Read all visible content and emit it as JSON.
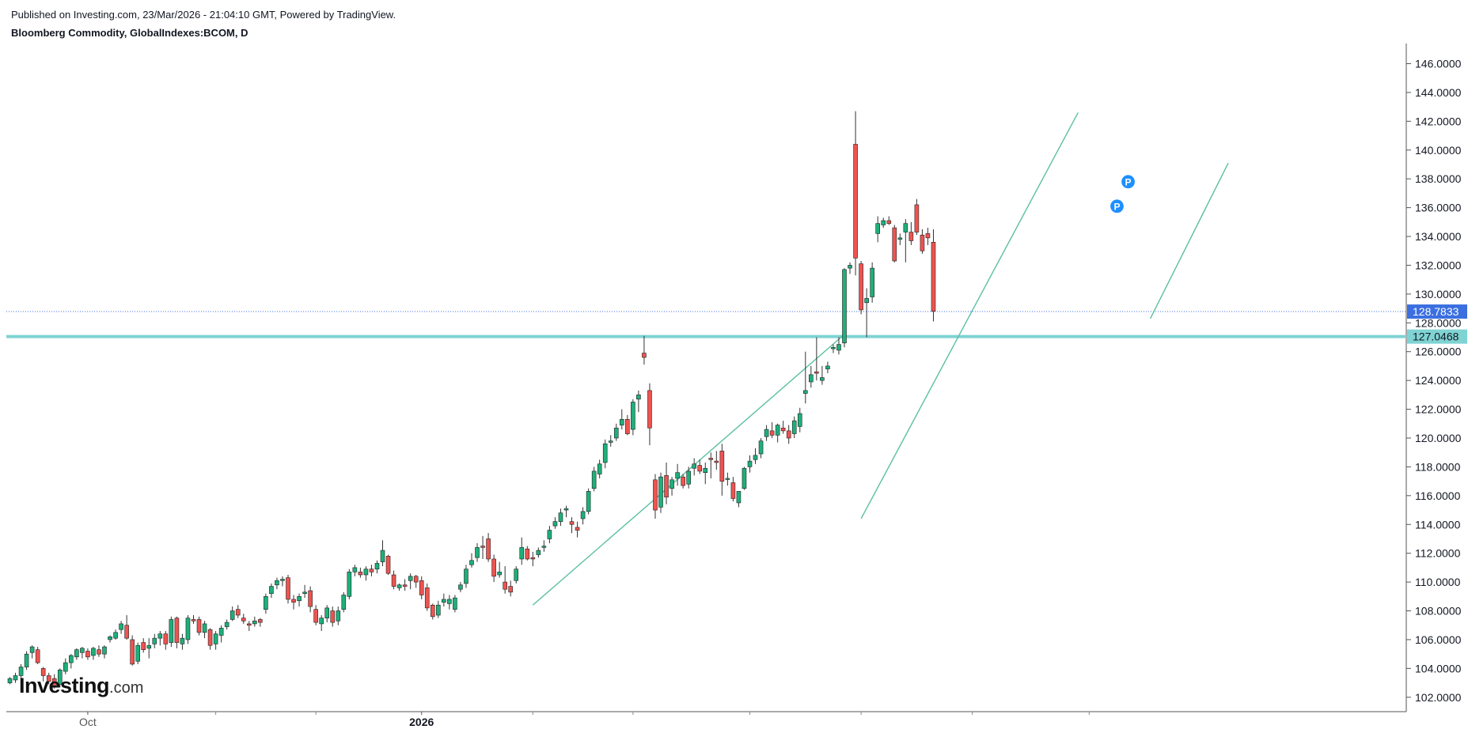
{
  "header": {
    "published": "Published on Investing.com, 23/Mar/2026 - 21:04:10 GMT, Powered by TradingView.",
    "title": "Bloomberg Commodity, GlobalIndexes:BCOM, D"
  },
  "logo": {
    "brand": "Investing",
    "suffix": ".com"
  },
  "colors": {
    "up": "#1db07a",
    "down": "#ef5350",
    "wick": "#333333",
    "trendline": "#5bbfa4",
    "support": "#7fd3d3",
    "last_price": "#3b6fe0",
    "marker": "#1e90ff"
  },
  "chart_data": {
    "type": "candlestick",
    "ylim": [
      101,
      147.4
    ],
    "y_ticks": [
      "146.0000",
      "144.0000",
      "142.0000",
      "140.0000",
      "138.0000",
      "136.0000",
      "134.0000",
      "132.0000",
      "130.0000",
      "128.0000",
      "126.0000",
      "124.0000",
      "122.0000",
      "120.0000",
      "118.0000",
      "116.0000",
      "114.0000",
      "112.0000",
      "110.0000",
      "108.0000",
      "106.0000",
      "104.0000",
      "102.0000"
    ],
    "x_labels": [
      {
        "label": "Oct",
        "index": 14,
        "bold": false
      },
      {
        "label": "2026",
        "index": 74,
        "bold": true
      }
    ],
    "x_minor_ticks": [
      37,
      55,
      94,
      112,
      133,
      153,
      173,
      194
    ],
    "bars_visible": 214,
    "candles": [
      [
        103.0,
        103.4,
        102.9,
        103.3
      ],
      [
        103.2,
        103.7,
        103.0,
        103.5
      ],
      [
        103.5,
        104.3,
        103.3,
        104.1
      ],
      [
        104.1,
        105.2,
        103.9,
        105.0
      ],
      [
        105.1,
        105.6,
        104.7,
        105.5
      ],
      [
        105.3,
        105.5,
        104.3,
        104.4
      ],
      [
        104.0,
        104.1,
        103.1,
        103.5
      ],
      [
        103.5,
        103.7,
        102.9,
        103.1
      ],
      [
        103.3,
        103.6,
        102.6,
        102.8
      ],
      [
        102.9,
        104.0,
        102.7,
        103.9
      ],
      [
        103.8,
        104.7,
        103.6,
        104.4
      ],
      [
        104.4,
        105.0,
        104.0,
        104.9
      ],
      [
        104.8,
        105.4,
        104.6,
        105.3
      ],
      [
        105.1,
        105.5,
        104.7,
        105.4
      ],
      [
        105.2,
        105.4,
        104.6,
        104.8
      ],
      [
        104.9,
        105.5,
        104.6,
        105.4
      ],
      [
        105.3,
        105.6,
        104.8,
        105.0
      ],
      [
        105.0,
        105.6,
        104.7,
        105.5
      ],
      [
        106.0,
        106.3,
        105.8,
        106.2
      ],
      [
        106.1,
        106.7,
        106.0,
        106.5
      ],
      [
        106.7,
        107.3,
        106.4,
        107.1
      ],
      [
        107.0,
        107.7,
        106.0,
        106.1
      ],
      [
        106.0,
        106.3,
        104.2,
        104.3
      ],
      [
        104.5,
        105.8,
        104.3,
        105.6
      ],
      [
        105.8,
        106.1,
        105.1,
        105.3
      ],
      [
        105.4,
        106.1,
        104.7,
        105.6
      ],
      [
        105.7,
        106.4,
        105.4,
        106.1
      ],
      [
        106.1,
        106.6,
        105.6,
        106.4
      ],
      [
        106.4,
        106.6,
        105.3,
        105.7
      ],
      [
        105.8,
        107.6,
        105.5,
        107.4
      ],
      [
        107.5,
        107.6,
        105.4,
        105.8
      ],
      [
        105.7,
        106.4,
        105.3,
        106.1
      ],
      [
        106.0,
        107.7,
        105.7,
        107.5
      ],
      [
        107.4,
        107.7,
        107.1,
        107.3
      ],
      [
        107.4,
        107.6,
        106.3,
        106.5
      ],
      [
        106.5,
        107.3,
        106.1,
        107.1
      ],
      [
        106.7,
        106.8,
        105.3,
        105.6
      ],
      [
        105.7,
        106.6,
        105.3,
        106.4
      ],
      [
        106.3,
        107.0,
        105.8,
        106.8
      ],
      [
        106.9,
        107.4,
        106.7,
        107.2
      ],
      [
        107.4,
        108.3,
        107.3,
        108.0
      ],
      [
        108.1,
        108.4,
        107.5,
        107.7
      ],
      [
        107.5,
        107.8,
        107.1,
        107.3
      ],
      [
        107.1,
        107.3,
        106.6,
        107.0
      ],
      [
        107.1,
        107.6,
        106.9,
        107.3
      ],
      [
        107.4,
        107.5,
        106.9,
        107.2
      ],
      [
        108.1,
        109.2,
        107.8,
        109.0
      ],
      [
        109.2,
        109.9,
        108.9,
        109.7
      ],
      [
        109.8,
        110.3,
        109.5,
        110.1
      ],
      [
        110.1,
        110.4,
        109.7,
        110.2
      ],
      [
        110.3,
        110.5,
        108.5,
        108.8
      ],
      [
        108.8,
        109.1,
        108.1,
        108.6
      ],
      [
        108.7,
        109.2,
        108.3,
        109.0
      ],
      [
        109.2,
        109.8,
        108.9,
        109.3
      ],
      [
        109.4,
        109.7,
        107.9,
        108.3
      ],
      [
        108.1,
        108.4,
        107.0,
        107.2
      ],
      [
        107.1,
        107.7,
        106.6,
        107.5
      ],
      [
        107.5,
        108.4,
        107.2,
        108.2
      ],
      [
        108.0,
        108.3,
        106.9,
        107.2
      ],
      [
        107.3,
        108.3,
        107.0,
        108.0
      ],
      [
        108.1,
        109.3,
        107.9,
        109.1
      ],
      [
        109.0,
        110.9,
        108.8,
        110.7
      ],
      [
        110.7,
        111.2,
        110.4,
        111.0
      ],
      [
        110.7,
        111.0,
        110.3,
        110.5
      ],
      [
        110.5,
        111.1,
        110.1,
        110.9
      ],
      [
        110.9,
        111.2,
        110.4,
        110.7
      ],
      [
        110.9,
        111.5,
        110.6,
        111.3
      ],
      [
        111.4,
        112.9,
        111.1,
        112.2
      ],
      [
        111.8,
        111.9,
        110.5,
        110.6
      ],
      [
        110.5,
        110.8,
        109.5,
        109.7
      ],
      [
        109.6,
        109.9,
        109.4,
        109.8
      ],
      [
        109.8,
        110.2,
        109.4,
        109.7
      ],
      [
        110.1,
        110.6,
        109.5,
        110.4
      ],
      [
        110.4,
        110.5,
        109.6,
        110.0
      ],
      [
        110.1,
        110.4,
        108.8,
        109.1
      ],
      [
        109.6,
        109.9,
        108.0,
        108.2
      ],
      [
        108.4,
        108.5,
        107.4,
        107.6
      ],
      [
        107.7,
        108.7,
        107.5,
        108.4
      ],
      [
        108.6,
        109.2,
        108.3,
        108.8
      ],
      [
        108.5,
        109.1,
        108.1,
        108.8
      ],
      [
        108.1,
        109.1,
        107.9,
        108.9
      ],
      [
        109.5,
        110.0,
        109.3,
        109.8
      ],
      [
        109.9,
        111.2,
        109.6,
        110.9
      ],
      [
        111.2,
        112.0,
        111.0,
        111.5
      ],
      [
        111.7,
        112.7,
        111.4,
        112.4
      ],
      [
        112.5,
        113.2,
        111.6,
        112.4
      ],
      [
        113.0,
        113.4,
        111.4,
        111.6
      ],
      [
        111.6,
        111.9,
        110.0,
        110.4
      ],
      [
        110.5,
        111.4,
        110.3,
        110.7
      ],
      [
        110.0,
        111.1,
        109.2,
        109.5
      ],
      [
        109.7,
        110.1,
        109.0,
        109.3
      ],
      [
        110.1,
        111.1,
        109.9,
        110.9
      ],
      [
        111.6,
        113.1,
        111.2,
        112.4
      ],
      [
        112.3,
        112.5,
        111.5,
        111.6
      ],
      [
        111.7,
        112.1,
        111.1,
        111.6
      ],
      [
        111.9,
        112.4,
        111.7,
        112.2
      ],
      [
        112.4,
        112.9,
        112.1,
        112.5
      ],
      [
        113.0,
        113.9,
        112.7,
        113.6
      ],
      [
        113.9,
        114.5,
        113.7,
        114.2
      ],
      [
        114.2,
        115.1,
        113.9,
        114.8
      ],
      [
        115.0,
        115.3,
        114.5,
        115.1
      ],
      [
        114.2,
        114.5,
        113.4,
        114.0
      ],
      [
        113.8,
        114.2,
        113.1,
        113.6
      ],
      [
        114.4,
        115.2,
        114.0,
        114.9
      ],
      [
        114.9,
        116.5,
        114.7,
        116.3
      ],
      [
        116.5,
        118.0,
        116.3,
        117.7
      ],
      [
        117.5,
        118.5,
        117.2,
        118.2
      ],
      [
        118.3,
        119.9,
        117.9,
        119.6
      ],
      [
        119.7,
        120.2,
        119.4,
        119.8
      ],
      [
        120.0,
        121.0,
        119.8,
        120.7
      ],
      [
        120.9,
        122.0,
        120.6,
        121.3
      ],
      [
        121.3,
        121.6,
        120.2,
        120.3
      ],
      [
        120.6,
        122.7,
        120.2,
        122.5
      ],
      [
        122.7,
        123.3,
        121.8,
        123.0
      ],
      [
        125.9,
        127.1,
        125.1,
        125.6
      ],
      [
        123.3,
        123.8,
        119.5,
        120.7
      ],
      [
        117.1,
        117.5,
        114.4,
        115.0
      ],
      [
        115.2,
        117.6,
        114.8,
        117.3
      ],
      [
        117.4,
        118.3,
        115.4,
        115.9
      ],
      [
        116.5,
        117.3,
        116.0,
        117.1
      ],
      [
        117.2,
        118.2,
        116.7,
        117.6
      ],
      [
        117.3,
        117.5,
        116.5,
        116.7
      ],
      [
        116.8,
        118.0,
        116.5,
        117.7
      ],
      [
        117.9,
        118.6,
        117.4,
        118.2
      ],
      [
        118.1,
        118.5,
        117.5,
        117.7
      ],
      [
        117.6,
        118.3,
        116.8,
        117.9
      ],
      [
        118.6,
        119.0,
        117.2,
        118.5
      ],
      [
        118.4,
        119.1,
        117.8,
        118.3
      ],
      [
        119.1,
        119.6,
        116.0,
        117.0
      ],
      [
        117.2,
        117.6,
        116.7,
        117.2
      ],
      [
        116.9,
        117.3,
        115.6,
        115.8
      ],
      [
        115.5,
        116.1,
        115.2,
        116.3
      ],
      [
        116.5,
        118.0,
        116.4,
        117.9
      ],
      [
        118.0,
        118.8,
        117.6,
        118.4
      ],
      [
        118.5,
        119.3,
        118.2,
        118.8
      ],
      [
        118.9,
        120.0,
        118.6,
        119.8
      ],
      [
        120.1,
        120.9,
        119.8,
        120.6
      ],
      [
        120.5,
        121.1,
        120.0,
        120.2
      ],
      [
        120.2,
        121.0,
        119.7,
        120.9
      ],
      [
        120.7,
        121.2,
        120.3,
        120.5
      ],
      [
        120.5,
        120.9,
        119.6,
        120.0
      ],
      [
        120.3,
        121.5,
        120.0,
        121.2
      ],
      [
        120.8,
        122.1,
        120.4,
        121.7
      ],
      [
        123.1,
        126.0,
        122.4,
        123.3
      ],
      [
        123.9,
        125.0,
        123.5,
        124.4
      ],
      [
        124.6,
        127.0,
        124.0,
        124.5
      ],
      [
        124.0,
        125.0,
        123.7,
        124.2
      ],
      [
        124.8,
        125.3,
        124.5,
        125.0
      ],
      [
        126.2,
        126.5,
        125.9,
        126.3
      ],
      [
        126.1,
        127.0,
        125.8,
        126.5
      ],
      [
        126.6,
        131.8,
        126.3,
        131.7
      ],
      [
        131.8,
        132.2,
        131.4,
        132.0
      ],
      [
        140.4,
        142.7,
        131.3,
        132.5
      ],
      [
        132.1,
        132.3,
        128.6,
        128.9
      ],
      [
        129.4,
        130.4,
        127.0,
        129.7
      ],
      [
        129.8,
        132.2,
        129.4,
        131.8
      ],
      [
        134.2,
        135.4,
        133.6,
        134.9
      ],
      [
        134.8,
        135.3,
        134.6,
        135.1
      ],
      [
        135.1,
        135.4,
        134.8,
        134.9
      ],
      [
        134.6,
        134.8,
        132.2,
        132.3
      ],
      [
        133.8,
        134.2,
        133.4,
        133.9
      ],
      [
        134.3,
        135.2,
        132.2,
        134.9
      ],
      [
        134.3,
        135.0,
        133.4,
        133.7
      ],
      [
        136.2,
        136.6,
        134.1,
        134.3
      ],
      [
        134.1,
        134.5,
        132.8,
        133.0
      ],
      [
        134.2,
        134.6,
        133.4,
        133.9
      ],
      [
        133.6,
        134.5,
        128.1,
        128.8
      ]
    ],
    "trendlines": [
      {
        "from": [
          94,
          108.4
        ],
        "to": [
          150,
          127.2
        ]
      },
      {
        "from": [
          153,
          114.4
        ],
        "to": [
          192,
          142.6
        ]
      },
      {
        "from": [
          205,
          128.3
        ],
        "to": [
          219,
          139.1
        ]
      }
    ],
    "support_level": "127.0468",
    "last_price": "128.7833",
    "markers": [
      {
        "label": "P",
        "index": 199,
        "price": 136.1
      },
      {
        "label": "P",
        "index": 201,
        "price": 137.8
      }
    ]
  }
}
